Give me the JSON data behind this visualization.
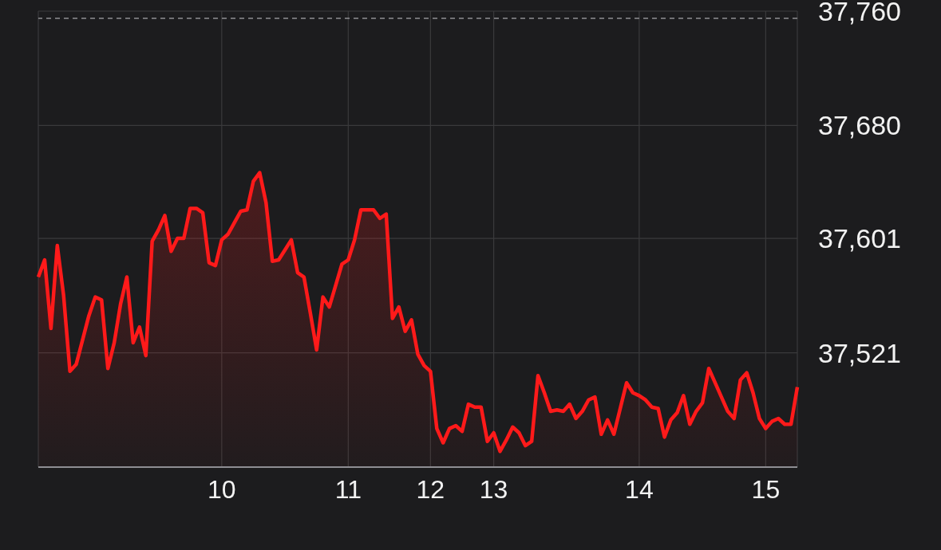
{
  "chart_data": {
    "type": "area",
    "categories": [
      null,
      null,
      null,
      null,
      null,
      null,
      null,
      null,
      null,
      null,
      null,
      null,
      null,
      null,
      null,
      null,
      null,
      null,
      null,
      null,
      null,
      null,
      null,
      null,
      null,
      null,
      null,
      null,
      null,
      "10",
      null,
      null,
      null,
      null,
      null,
      null,
      null,
      null,
      null,
      null,
      null,
      null,
      null,
      null,
      null,
      null,
      null,
      null,
      null,
      "11",
      null,
      null,
      null,
      null,
      null,
      null,
      null,
      null,
      null,
      null,
      null,
      null,
      "12",
      null,
      null,
      null,
      null,
      null,
      null,
      null,
      null,
      null,
      "13",
      null,
      null,
      null,
      null,
      null,
      null,
      null,
      null,
      null,
      null,
      null,
      null,
      null,
      null,
      null,
      null,
      null,
      null,
      null,
      null,
      null,
      null,
      "14",
      null,
      null,
      null,
      null,
      null,
      null,
      null,
      null,
      null,
      null,
      null,
      null,
      null,
      null,
      null,
      null,
      null,
      null,
      null,
      "15",
      null,
      null,
      null,
      null,
      null
    ],
    "series": [
      {
        "color": "#ff1a1a",
        "values": [
          37574,
          37586,
          37538,
          37596,
          37561,
          37508,
          37513,
          37530,
          37547,
          37560,
          37558,
          37510,
          37528,
          37555,
          37574,
          37528,
          37539,
          37519,
          37599,
          37607,
          37617,
          37592,
          37601,
          37601,
          37622,
          37622,
          37619,
          37584,
          37582,
          37600,
          37604,
          37612,
          37620,
          37621,
          37641,
          37647,
          37626,
          37585,
          37586,
          37593,
          37600,
          37577,
          37574,
          37549,
          37523,
          37560,
          37553,
          37568,
          37583,
          37586,
          37600,
          37621,
          37621,
          37621,
          37615,
          37618,
          37545,
          37553,
          37536,
          37544,
          37520,
          37512,
          37508,
          37468,
          37458,
          37468,
          37470,
          37466,
          37485,
          37483,
          37483,
          37459,
          37465,
          37452,
          37460,
          37469,
          37465,
          37456,
          37459,
          37505,
          37493,
          37480,
          37481,
          37480,
          37485,
          37475,
          37480,
          37488,
          37490,
          37464,
          37474,
          37464,
          37482,
          37500,
          37493,
          37491,
          37488,
          37483,
          37482,
          37462,
          37474,
          37479,
          37491,
          37471,
          37480,
          37486,
          37510,
          37500,
          37490,
          37480,
          37475,
          37502,
          37507,
          37493,
          37475,
          37468,
          37473,
          37475,
          37471,
          37471,
          37497
        ]
      }
    ],
    "ylim": [
      37441,
      37760
    ],
    "yticks": [
      {
        "value": 37441,
        "label": null
      },
      {
        "value": 37521,
        "label": "37,521"
      },
      {
        "value": 37601,
        "label": "37,601"
      },
      {
        "value": 37680,
        "label": "37,680"
      },
      {
        "value": 37760,
        "label": "37,760"
      }
    ],
    "ref_lines": [
      {
        "axis": "y",
        "value": 37755,
        "line_style": "dashed",
        "color": "#8e8e93"
      }
    ],
    "grid": true
  }
}
